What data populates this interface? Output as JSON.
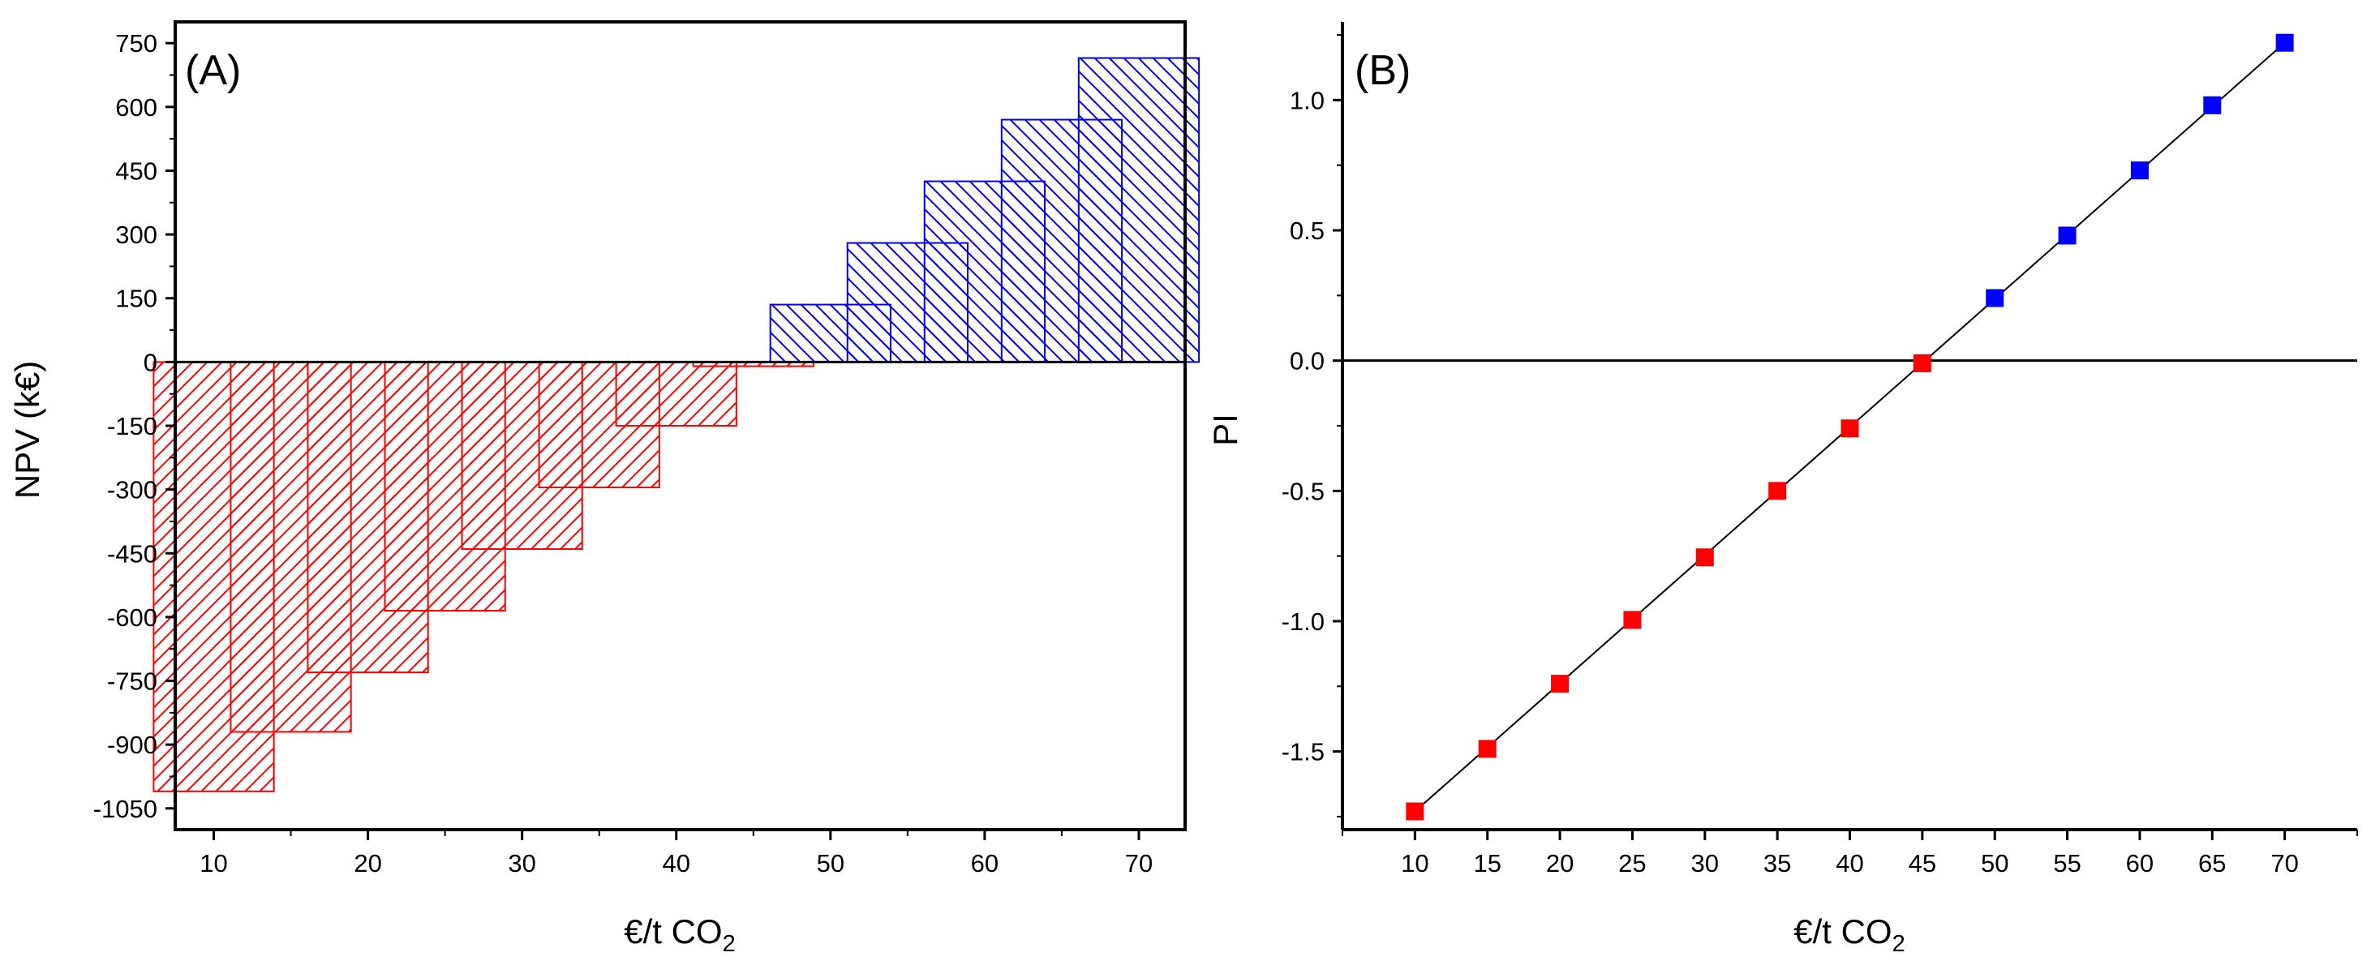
{
  "chart_data": [
    {
      "panel_label": "(A)",
      "type": "bar",
      "xlabel_main": "€/t CO",
      "xlabel_sub": "2",
      "ylabel": "NPV (k€)",
      "x": [
        10,
        15,
        20,
        25,
        30,
        35,
        40,
        45,
        50,
        55,
        60,
        65,
        70
      ],
      "values": [
        -1010,
        -870,
        -730,
        -585,
        -440,
        -295,
        -150,
        -10,
        135,
        280,
        425,
        570,
        715
      ],
      "xlim": [
        7.5,
        73
      ],
      "ylim": [
        -1100,
        800
      ],
      "xticks": [
        10,
        20,
        30,
        40,
        50,
        60,
        70
      ],
      "xtick_labels": [
        "10",
        "20",
        "30",
        "40",
        "50",
        "60",
        "70"
      ],
      "yticks": [
        -1050,
        -900,
        -750,
        -600,
        -450,
        -300,
        -150,
        0,
        150,
        300,
        450,
        600,
        750
      ],
      "ytick_labels": [
        "-1050",
        "-900",
        "-750",
        "-600",
        "-450",
        "-300",
        "-150",
        "0",
        "150",
        "300",
        "450",
        "600",
        "750"
      ],
      "colors": {
        "negative": "#ff0000",
        "positive": "#0000ff"
      },
      "pattern": {
        "negative": "hatch-forward",
        "positive": "hatch-back"
      },
      "grid": false
    },
    {
      "panel_label": "(B)",
      "type": "scatter",
      "xlabel_main": "€/t CO",
      "xlabel_sub": "2",
      "ylabel": "PI",
      "x": [
        10,
        15,
        20,
        25,
        30,
        35,
        40,
        45,
        50,
        55,
        60,
        65,
        70
      ],
      "values": [
        -1.73,
        -1.49,
        -1.24,
        -0.995,
        -0.755,
        -0.5,
        -0.26,
        -0.01,
        0.24,
        0.48,
        0.73,
        0.98,
        1.22
      ],
      "fit_line": {
        "x": [
          10,
          70
        ],
        "y": [
          -1.73,
          1.22
        ]
      },
      "xlim": [
        5,
        75
      ],
      "ylim": [
        -1.8,
        1.3
      ],
      "xticks": [
        10,
        15,
        20,
        25,
        30,
        35,
        40,
        45,
        50,
        55,
        60,
        65,
        70
      ],
      "xtick_labels": [
        "10",
        "15",
        "20",
        "25",
        "30",
        "35",
        "40",
        "45",
        "50",
        "55",
        "60",
        "65",
        "70"
      ],
      "yticks": [
        -1.5,
        -1.0,
        -0.5,
        0.0,
        0.5,
        1.0
      ],
      "ytick_labels": [
        "-1.5",
        "-1.0",
        "-0.5",
        "0.0",
        "0.5",
        "1.0"
      ],
      "colors": {
        "negative": "#ff0000",
        "positive": "#0000ff",
        "fit": "#000000"
      },
      "grid": false
    }
  ]
}
